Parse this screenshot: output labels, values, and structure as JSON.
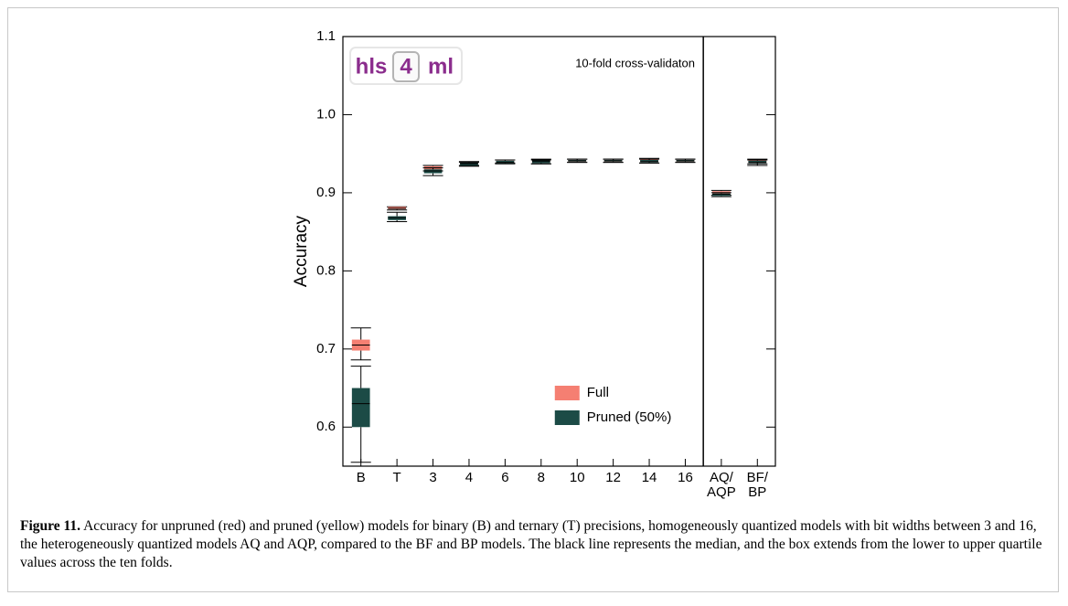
{
  "chart_data": {
    "type": "box",
    "annotation": "10-fold cross-validaton",
    "logo": {
      "left": "hls",
      "middle": "4",
      "right": "ml"
    },
    "ylabel": "Accuracy",
    "categories": [
      "B",
      "T",
      "3",
      "4",
      "6",
      "8",
      "10",
      "12",
      "14",
      "16",
      "AQ/\nAQP",
      "BF/\nBP"
    ],
    "ylim": [
      0.55,
      1.1
    ],
    "yticks": [
      0.6,
      0.7,
      0.8,
      0.9,
      {
        "value": 1,
        "label": "1.0"
      },
      1.1
    ],
    "legend": "lower right",
    "series": [
      {
        "name": "Full",
        "color": "#f57f72",
        "whislo": [
          0.686,
          0.878,
          0.928,
          0.935,
          0.938,
          0.937,
          0.939,
          0.939,
          0.938,
          0.939,
          0.897,
          0.937
        ],
        "q1": [
          0.698,
          0.879,
          0.93,
          0.937,
          0.939,
          0.939,
          0.94,
          0.94,
          0.94,
          0.94,
          0.899,
          0.939
        ],
        "median": [
          0.705,
          0.88,
          0.932,
          0.938,
          0.94,
          0.941,
          0.941,
          0.941,
          0.941,
          0.941,
          0.9,
          0.94
        ],
        "q3": [
          0.712,
          0.882,
          0.934,
          0.939,
          0.941,
          0.942,
          0.942,
          0.942,
          0.943,
          0.942,
          0.902,
          0.942
        ],
        "whishi": [
          0.727,
          0.882,
          0.935,
          0.94,
          0.942,
          0.943,
          0.943,
          0.943,
          0.944,
          0.943,
          0.903,
          0.943
        ]
      },
      {
        "name": "Pruned (50%)",
        "color": "#1c4b46",
        "whislo": [
          0.555,
          0.863,
          0.922,
          0.934,
          0.937,
          0.937,
          0.939,
          0.939,
          0.938,
          0.939,
          0.895,
          0.935
        ],
        "q1": [
          0.6,
          0.865,
          0.925,
          0.935,
          0.938,
          0.938,
          0.94,
          0.94,
          0.939,
          0.94,
          0.896,
          0.938
        ],
        "median": [
          0.63,
          0.868,
          0.928,
          0.937,
          0.939,
          0.94,
          0.941,
          0.941,
          0.94,
          0.941,
          0.898,
          0.939
        ],
        "q3": [
          0.65,
          0.87,
          0.93,
          0.938,
          0.941,
          0.941,
          0.942,
          0.942,
          0.942,
          0.942,
          0.899,
          0.941
        ],
        "whishi": [
          0.678,
          0.875,
          0.932,
          0.939,
          0.942,
          0.942,
          0.943,
          0.943,
          0.943,
          0.943,
          0.9,
          0.942
        ]
      }
    ]
  },
  "caption": {
    "label": "Figure 11.",
    "text": "Accuracy for unpruned (red) and pruned (yellow) models for binary (B) and ternary (T) precisions, homogeneously quantized models with bit widths between 3 and 16, the heterogeneously quantized models AQ and AQP, compared to the BF and BP models. The black line represents the median, and the box extends from the lower to upper quartile values across the ten folds."
  }
}
